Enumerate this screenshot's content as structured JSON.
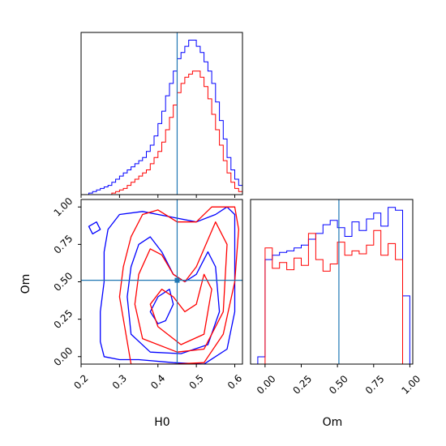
{
  "chart_data": [
    {
      "type": "histogram",
      "panel": "H0 marginal",
      "x_range": [
        0.2,
        0.62
      ],
      "truth": 0.45,
      "bin_edges": [
        0.2,
        0.21,
        0.22,
        0.23,
        0.24,
        0.25,
        0.26,
        0.27,
        0.28,
        0.29,
        0.3,
        0.31,
        0.32,
        0.33,
        0.34,
        0.35,
        0.36,
        0.37,
        0.38,
        0.39,
        0.4,
        0.41,
        0.42,
        0.43,
        0.44,
        0.45,
        0.46,
        0.47,
        0.48,
        0.49,
        0.5,
        0.51,
        0.52,
        0.53,
        0.54,
        0.55,
        0.56,
        0.57,
        0.58,
        0.59,
        0.6,
        0.61,
        0.62
      ],
      "series": [
        {
          "color": "#0000ff",
          "counts": [
            0,
            0,
            0.5,
            1,
            1.5,
            2,
            2.5,
            3,
            4,
            5,
            6,
            7,
            8,
            9,
            10,
            11,
            12,
            14,
            16,
            19,
            23,
            27,
            32,
            36,
            40,
            44,
            46,
            48,
            50,
            50,
            48,
            46,
            43,
            40,
            36,
            30,
            24,
            18,
            12,
            8,
            5,
            3
          ]
        },
        {
          "color": "#ff0000",
          "counts": [
            0,
            0,
            0,
            0,
            0,
            0,
            0,
            0,
            0.5,
            1,
            1.5,
            2,
            3,
            4,
            5,
            6,
            7,
            8,
            10,
            12,
            14,
            17,
            21,
            25,
            29,
            33,
            36,
            38,
            39,
            40,
            40,
            38,
            35,
            31,
            26,
            21,
            16,
            11,
            7,
            4,
            2,
            1
          ]
        }
      ]
    },
    {
      "type": "contour",
      "panel": "Om vs H0",
      "x_range": [
        0.2,
        0.62
      ],
      "y_range": [
        -0.05,
        1.05
      ],
      "truth": {
        "H0": 0.45,
        "Om": 0.51
      },
      "series": [
        {
          "color": "#0000ff",
          "contours": [
            [
              [
                0.26,
                0.0
              ],
              [
                0.25,
                0.1
              ],
              [
                0.25,
                0.3
              ],
              [
                0.26,
                0.5
              ],
              [
                0.26,
                0.7
              ],
              [
                0.27,
                0.85
              ],
              [
                0.3,
                0.95
              ],
              [
                0.36,
                0.97
              ],
              [
                0.44,
                0.93
              ],
              [
                0.5,
                0.9
              ],
              [
                0.55,
                0.95
              ],
              [
                0.58,
                1.0
              ],
              [
                0.6,
                0.95
              ],
              [
                0.6,
                0.6
              ],
              [
                0.6,
                0.3
              ],
              [
                0.58,
                0.05
              ],
              [
                0.52,
                -0.05
              ],
              [
                0.44,
                -0.04
              ],
              [
                0.35,
                -0.02
              ],
              [
                0.3,
                -0.02
              ]
            ],
            [
              [
                0.33,
                0.15
              ],
              [
                0.32,
                0.4
              ],
              [
                0.33,
                0.6
              ],
              [
                0.35,
                0.75
              ],
              [
                0.38,
                0.8
              ],
              [
                0.41,
                0.7
              ],
              [
                0.44,
                0.55
              ],
              [
                0.47,
                0.5
              ],
              [
                0.5,
                0.55
              ],
              [
                0.53,
                0.7
              ],
              [
                0.55,
                0.6
              ],
              [
                0.56,
                0.3
              ],
              [
                0.53,
                0.08
              ],
              [
                0.46,
                0.02
              ],
              [
                0.38,
                0.03
              ]
            ],
            [
              [
                0.22,
                0.87
              ],
              [
                0.23,
                0.82
              ],
              [
                0.25,
                0.85
              ],
              [
                0.24,
                0.9
              ]
            ],
            [
              [
                0.4,
                0.22
              ],
              [
                0.38,
                0.3
              ],
              [
                0.4,
                0.4
              ],
              [
                0.43,
                0.45
              ],
              [
                0.44,
                0.35
              ],
              [
                0.42,
                0.24
              ]
            ]
          ]
        },
        {
          "color": "#ff0000",
          "contours": [
            [
              [
                0.33,
                -0.05
              ],
              [
                0.32,
                0.1
              ],
              [
                0.3,
                0.4
              ],
              [
                0.31,
                0.6
              ],
              [
                0.33,
                0.8
              ],
              [
                0.36,
                0.95
              ],
              [
                0.4,
                0.98
              ],
              [
                0.45,
                0.9
              ],
              [
                0.5,
                0.9
              ],
              [
                0.54,
                1.0
              ],
              [
                0.6,
                1.0
              ],
              [
                0.61,
                0.85
              ],
              [
                0.6,
                0.5
              ],
              [
                0.57,
                0.15
              ],
              [
                0.52,
                -0.04
              ],
              [
                0.44,
                -0.05
              ]
            ],
            [
              [
                0.36,
                0.12
              ],
              [
                0.34,
                0.35
              ],
              [
                0.35,
                0.55
              ],
              [
                0.38,
                0.72
              ],
              [
                0.41,
                0.68
              ],
              [
                0.44,
                0.55
              ],
              [
                0.47,
                0.5
              ],
              [
                0.5,
                0.6
              ],
              [
                0.55,
                0.9
              ],
              [
                0.58,
                0.75
              ],
              [
                0.57,
                0.3
              ],
              [
                0.52,
                0.05
              ],
              [
                0.45,
                0.03
              ]
            ],
            [
              [
                0.4,
                0.2
              ],
              [
                0.38,
                0.35
              ],
              [
                0.41,
                0.45
              ],
              [
                0.44,
                0.4
              ],
              [
                0.47,
                0.3
              ],
              [
                0.5,
                0.35
              ],
              [
                0.52,
                0.55
              ],
              [
                0.54,
                0.45
              ],
              [
                0.52,
                0.15
              ],
              [
                0.46,
                0.08
              ]
            ]
          ]
        }
      ]
    },
    {
      "type": "histogram",
      "panel": "Om marginal",
      "x_range": [
        -0.1,
        1.02
      ],
      "truth": 0.51,
      "bin_edges": [
        -0.1,
        -0.05,
        0.0,
        0.05,
        0.1,
        0.15,
        0.2,
        0.25,
        0.3,
        0.35,
        0.4,
        0.45,
        0.5,
        0.55,
        0.6,
        0.65,
        0.7,
        0.75,
        0.8,
        0.85,
        0.9,
        0.95,
        1.0
      ],
      "series": [
        {
          "color": "#0000ff",
          "counts": [
            0,
            0.05,
            0.72,
            0.75,
            0.77,
            0.78,
            0.8,
            0.82,
            0.86,
            0.9,
            0.96,
            0.99,
            0.94,
            0.88,
            0.98,
            0.92,
            1.0,
            1.04,
            0.95,
            1.08,
            1.06,
            0.47
          ]
        },
        {
          "color": "#ff0000",
          "counts": [
            0,
            0,
            0.8,
            0.66,
            0.7,
            0.65,
            0.73,
            0.68,
            0.9,
            0.72,
            0.64,
            0.69,
            0.84,
            0.75,
            0.78,
            0.76,
            0.82,
            0.92,
            0.75,
            0.83,
            0.72,
            0.0
          ]
        }
      ]
    }
  ],
  "axes": {
    "h0_ticks": [
      "0.2",
      "0.3",
      "0.4",
      "0.5",
      "0.6"
    ],
    "om_ticks": [
      "0.00",
      "0.25",
      "0.50",
      "0.75",
      "1.00"
    ],
    "xlabel_h0": "H0",
    "ylabel_om": "Om",
    "xlabel_om": "Om"
  },
  "colors": {
    "blue": "#0000ff",
    "red": "#ff0000",
    "truth": "#1f77b4"
  }
}
